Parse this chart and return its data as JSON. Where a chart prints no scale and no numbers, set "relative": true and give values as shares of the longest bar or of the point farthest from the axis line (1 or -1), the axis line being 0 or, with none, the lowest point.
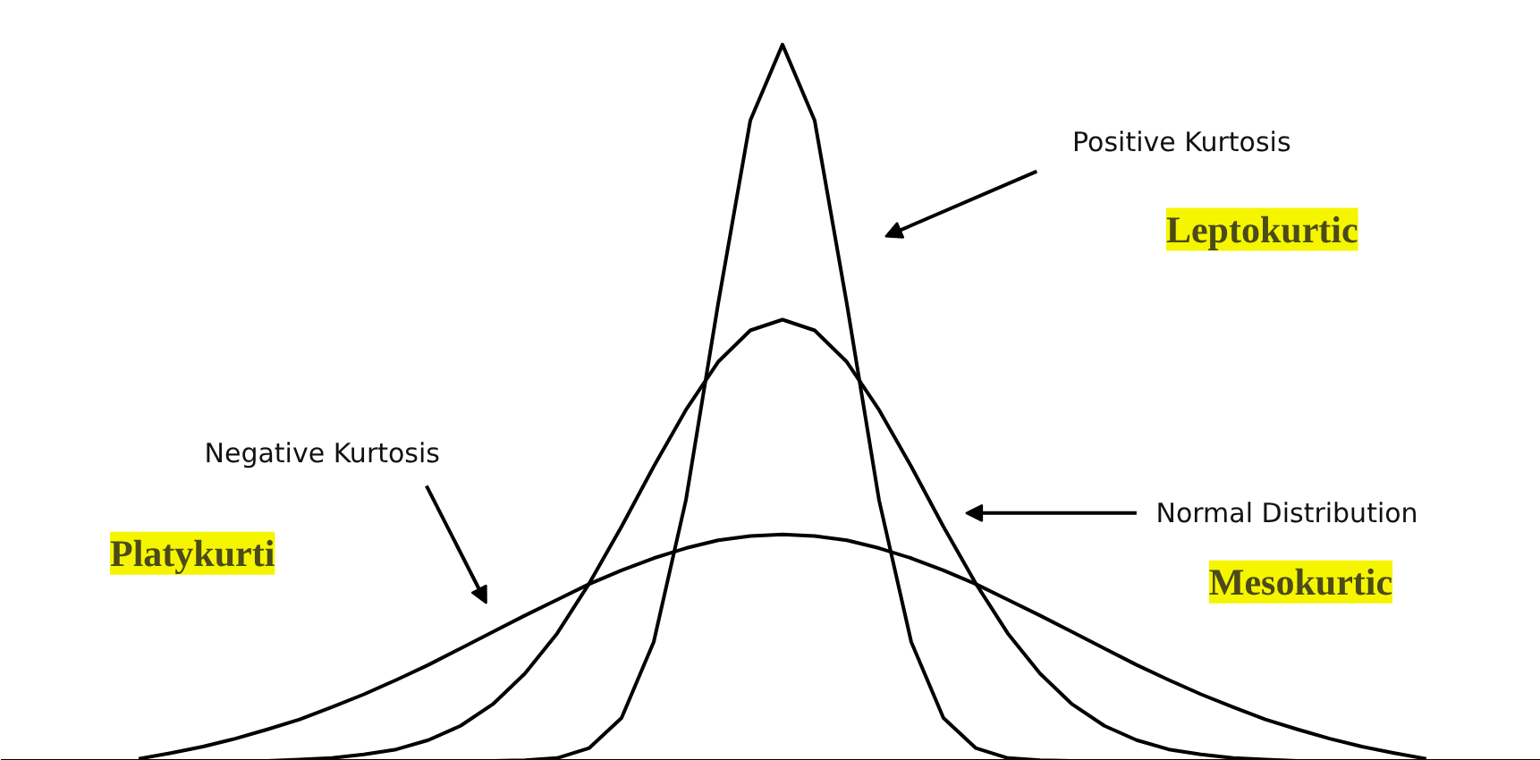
{
  "chart_data": {
    "type": "line",
    "relative": true,
    "categories": [
      null,
      null,
      null,
      null,
      null,
      null,
      null,
      null,
      null,
      null,
      null,
      null,
      null,
      null,
      null,
      null,
      null,
      null,
      null,
      null,
      null,
      null,
      null,
      null,
      null,
      null,
      null,
      null,
      null,
      null,
      null,
      null,
      null,
      null,
      null,
      null,
      null,
      null,
      null,
      null,
      null
    ],
    "series": [
      {
        "color": "#000000",
        "values": [
          null,
          null,
          null,
          null,
          null,
          null,
          null,
          null,
          null,
          null,
          null,
          0,
          0.001,
          0.004,
          0.018,
          0.06,
          0.166,
          0.364,
          0.638,
          0.894,
          1,
          0.894,
          0.638,
          0.364,
          0.166,
          0.06,
          0.018,
          0.004,
          0.001,
          0,
          null,
          null,
          null,
          null,
          null,
          null,
          null,
          null,
          null,
          null,
          null
        ]
      },
      {
        "color": "#000000",
        "values": [
          null,
          null,
          null,
          null,
          0,
          0.002,
          0.004,
          0.009,
          0.016,
          0.029,
          0.049,
          0.079,
          0.122,
          0.178,
          0.248,
          0.327,
          0.411,
          0.49,
          0.557,
          0.601,
          0.616,
          0.601,
          0.557,
          0.49,
          0.411,
          0.327,
          0.248,
          0.178,
          0.122,
          0.079,
          0.049,
          0.029,
          0.016,
          0.009,
          0.004,
          0.002,
          0,
          null,
          null,
          null,
          null
        ]
      },
      {
        "color": "#000000",
        "values": [
          0.003,
          0.011,
          0.02,
          0.031,
          0.044,
          0.058,
          0.075,
          0.093,
          0.113,
          0.134,
          0.157,
          0.18,
          0.203,
          0.225,
          0.247,
          0.266,
          0.283,
          0.297,
          0.308,
          0.314,
          0.316,
          0.314,
          0.308,
          0.297,
          0.283,
          0.266,
          0.247,
          0.225,
          0.203,
          0.18,
          0.157,
          0.134,
          0.113,
          0.093,
          0.075,
          0.058,
          0.044,
          0.031,
          0.02,
          0.011,
          0.003
        ]
      }
    ],
    "annotations": [
      "Positive Kurtosis",
      "Leptokurtic",
      "Normal Distribution",
      "Mesokurtic",
      "Negative Kurtosis",
      "Platykurti"
    ],
    "grid": false,
    "line_style": "solid",
    "marker": "none"
  }
}
